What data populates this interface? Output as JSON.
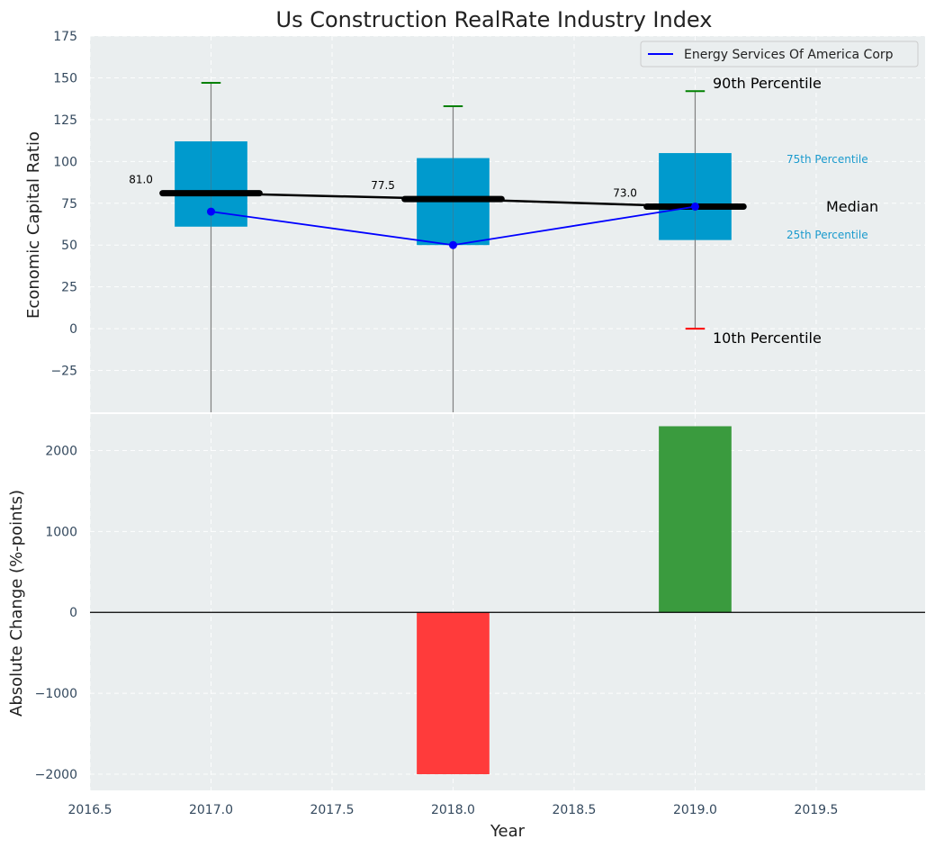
{
  "chart_data": {
    "title": "Us Construction RealRate Industry Index",
    "xlabel": "Year",
    "x_ticks": [
      "2016.5",
      "2017.0",
      "2017.5",
      "2018.0",
      "2018.5",
      "2019.0",
      "2019.5"
    ],
    "x_tick_values": [
      2016.5,
      2017.0,
      2017.5,
      2018.0,
      2018.5,
      2019.0,
      2019.5
    ],
    "xlim": [
      2016.5,
      2019.95
    ],
    "grid": true,
    "top": {
      "type": "box",
      "ylabel": "Economic Capital Ratio",
      "ylim": [
        -50,
        175
      ],
      "y_ticks": [
        "175",
        "150",
        "125",
        "100",
        "75",
        "50",
        "25",
        "0",
        "−25"
      ],
      "y_tick_values": [
        175,
        150,
        125,
        100,
        75,
        50,
        25,
        0,
        -25
      ],
      "years": [
        2017,
        2018,
        2019
      ],
      "p10": [
        -50,
        -50,
        0
      ],
      "p25": [
        61,
        50,
        53
      ],
      "median": [
        81.0,
        77.5,
        73.0
      ],
      "p75": [
        112,
        102,
        105
      ],
      "p90": [
        147,
        133,
        142
      ],
      "median_labels": [
        "81.0",
        "77.5",
        "73.0"
      ],
      "series": [
        {
          "name": "Energy Services Of America Corp",
          "x": [
            2017,
            2018,
            2019
          ],
          "values": [
            70,
            50,
            73
          ],
          "color": "#0000ff"
        }
      ],
      "legend": "top-right",
      "box_color": "#009acd",
      "annotations": {
        "p90": "90th Percentile",
        "p75": "75th Percentile",
        "median": "Median",
        "p25": "25th Percentile",
        "p10": "10th Percentile"
      }
    },
    "bottom": {
      "type": "bar",
      "ylabel": "Absolute Change (%-points)",
      "ylim": [
        -2200,
        2450
      ],
      "y_ticks": [
        "2000",
        "1000",
        "0",
        "−1000",
        "−2000"
      ],
      "y_tick_values": [
        2000,
        1000,
        0,
        -1000,
        -2000
      ],
      "x": [
        2018,
        2019
      ],
      "values": [
        -2000,
        2300
      ],
      "colors": {
        "negative": "#ff3b3b",
        "positive": "#3a9b3e"
      }
    },
    "colors": {
      "background": "#eaeeef",
      "whisker_top": "#008000",
      "whisker_bottom": "#ff0000",
      "median_line": "#000000",
      "p_labels": "#1a9acd"
    }
  }
}
